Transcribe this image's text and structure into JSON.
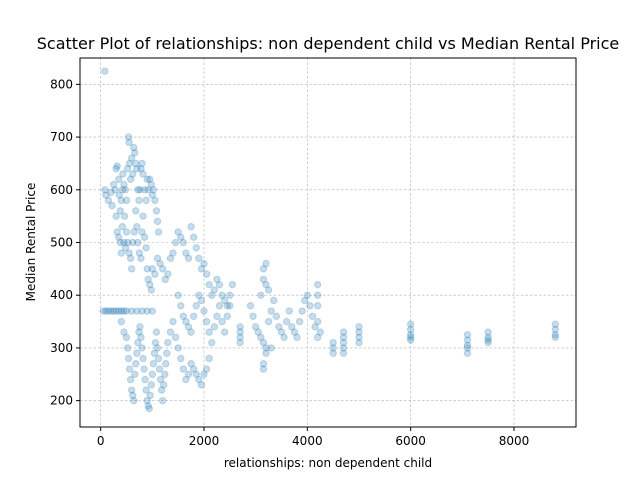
{
  "chart_data": {
    "type": "scatter",
    "title": "Scatter Plot of relationships: non dependent child vs Median Rental Price",
    "xlabel": "relationships: non dependent child",
    "ylabel": "Median Rental Price",
    "xlim": [
      -400,
      9200
    ],
    "ylim": [
      150,
      850
    ],
    "xticks": [
      0,
      2000,
      4000,
      6000,
      8000
    ],
    "yticks": [
      200,
      300,
      400,
      500,
      600,
      700,
      800
    ],
    "grid": true,
    "marker_color": "#1f77b4",
    "marker_alpha": 0.25,
    "points": [
      [
        80,
        825
      ],
      [
        80,
        600
      ],
      [
        100,
        590
      ],
      [
        150,
        580
      ],
      [
        200,
        595
      ],
      [
        220,
        570
      ],
      [
        250,
        610
      ],
      [
        280,
        600
      ],
      [
        300,
        640
      ],
      [
        320,
        645
      ],
      [
        350,
        620
      ],
      [
        360,
        590
      ],
      [
        380,
        560
      ],
      [
        400,
        580
      ],
      [
        420,
        600
      ],
      [
        430,
        630
      ],
      [
        450,
        610
      ],
      [
        460,
        550
      ],
      [
        480,
        600
      ],
      [
        500,
        580
      ],
      [
        520,
        640
      ],
      [
        540,
        700
      ],
      [
        550,
        690
      ],
      [
        560,
        650
      ],
      [
        580,
        620
      ],
      [
        600,
        660
      ],
      [
        620,
        630
      ],
      [
        640,
        680
      ],
      [
        660,
        670
      ],
      [
        680,
        650
      ],
      [
        700,
        640
      ],
      [
        720,
        600
      ],
      [
        740,
        580
      ],
      [
        760,
        600
      ],
      [
        780,
        640
      ],
      [
        800,
        650
      ],
      [
        820,
        630
      ],
      [
        850,
        600
      ],
      [
        880,
        580
      ],
      [
        900,
        620
      ],
      [
        920,
        600
      ],
      [
        950,
        620
      ],
      [
        980,
        610
      ],
      [
        1000,
        590
      ],
      [
        1020,
        600
      ],
      [
        1050,
        580
      ],
      [
        1080,
        560
      ],
      [
        1100,
        540
      ],
      [
        1120,
        520
      ],
      [
        300,
        550
      ],
      [
        320,
        520
      ],
      [
        350,
        510
      ],
      [
        380,
        500
      ],
      [
        400,
        480
      ],
      [
        420,
        530
      ],
      [
        450,
        500
      ],
      [
        480,
        490
      ],
      [
        500,
        520
      ],
      [
        520,
        500
      ],
      [
        550,
        480
      ],
      [
        580,
        470
      ],
      [
        600,
        450
      ],
      [
        620,
        500
      ],
      [
        650,
        520
      ],
      [
        680,
        560
      ],
      [
        700,
        530
      ],
      [
        720,
        500
      ],
      [
        750,
        480
      ],
      [
        780,
        470
      ],
      [
        800,
        520
      ],
      [
        820,
        550
      ],
      [
        850,
        510
      ],
      [
        880,
        490
      ],
      [
        900,
        450
      ],
      [
        920,
        430
      ],
      [
        950,
        420
      ],
      [
        980,
        410
      ],
      [
        1000,
        450
      ],
      [
        1050,
        440
      ],
      [
        1100,
        470
      ],
      [
        1150,
        460
      ],
      [
        1200,
        450
      ],
      [
        1250,
        430
      ],
      [
        1300,
        440
      ],
      [
        1350,
        470
      ],
      [
        1400,
        480
      ],
      [
        1450,
        500
      ],
      [
        1500,
        520
      ],
      [
        1550,
        510
      ],
      [
        1600,
        500
      ],
      [
        1650,
        480
      ],
      [
        1700,
        470
      ],
      [
        1750,
        530
      ],
      [
        1800,
        510
      ],
      [
        1850,
        490
      ],
      [
        1900,
        470
      ],
      [
        1950,
        450
      ],
      [
        2000,
        460
      ],
      [
        2050,
        440
      ],
      [
        2100,
        420
      ],
      [
        2150,
        400
      ],
      [
        2200,
        410
      ],
      [
        2250,
        430
      ],
      [
        2300,
        420
      ],
      [
        2350,
        400
      ],
      [
        2400,
        390
      ],
      [
        2450,
        380
      ],
      [
        2500,
        400
      ],
      [
        2550,
        420
      ],
      [
        50,
        370
      ],
      [
        100,
        370
      ],
      [
        150,
        370
      ],
      [
        200,
        370
      ],
      [
        250,
        370
      ],
      [
        300,
        370
      ],
      [
        350,
        370
      ],
      [
        400,
        370
      ],
      [
        450,
        370
      ],
      [
        500,
        370
      ],
      [
        600,
        370
      ],
      [
        700,
        370
      ],
      [
        800,
        370
      ],
      [
        900,
        370
      ],
      [
        1000,
        370
      ],
      [
        400,
        350
      ],
      [
        450,
        330
      ],
      [
        500,
        320
      ],
      [
        520,
        300
      ],
      [
        540,
        280
      ],
      [
        560,
        260
      ],
      [
        580,
        240
      ],
      [
        600,
        220
      ],
      [
        620,
        210
      ],
      [
        640,
        200
      ],
      [
        660,
        250
      ],
      [
        680,
        270
      ],
      [
        700,
        290
      ],
      [
        720,
        310
      ],
      [
        740,
        330
      ],
      [
        760,
        340
      ],
      [
        780,
        320
      ],
      [
        800,
        300
      ],
      [
        820,
        280
      ],
      [
        840,
        260
      ],
      [
        860,
        240
      ],
      [
        880,
        220
      ],
      [
        900,
        200
      ],
      [
        920,
        190
      ],
      [
        940,
        185
      ],
      [
        960,
        210
      ],
      [
        980,
        230
      ],
      [
        1000,
        250
      ],
      [
        1020,
        270
      ],
      [
        1040,
        290
      ],
      [
        1060,
        310
      ],
      [
        1080,
        330
      ],
      [
        1100,
        300
      ],
      [
        1120,
        280
      ],
      [
        1140,
        260
      ],
      [
        1160,
        240
      ],
      [
        1180,
        220
      ],
      [
        1200,
        200
      ],
      [
        1220,
        230
      ],
      [
        1240,
        250
      ],
      [
        1260,
        270
      ],
      [
        1280,
        290
      ],
      [
        1300,
        310
      ],
      [
        1350,
        330
      ],
      [
        1400,
        350
      ],
      [
        1450,
        320
      ],
      [
        1500,
        300
      ],
      [
        1550,
        280
      ],
      [
        1600,
        260
      ],
      [
        1650,
        240
      ],
      [
        1700,
        250
      ],
      [
        1750,
        270
      ],
      [
        1800,
        260
      ],
      [
        1850,
        250
      ],
      [
        1900,
        240
      ],
      [
        1950,
        230
      ],
      [
        2000,
        250
      ],
      [
        2050,
        260
      ],
      [
        2100,
        280
      ],
      [
        1500,
        400
      ],
      [
        1550,
        380
      ],
      [
        1600,
        360
      ],
      [
        1650,
        350
      ],
      [
        1700,
        340
      ],
      [
        1750,
        330
      ],
      [
        1800,
        360
      ],
      [
        1850,
        380
      ],
      [
        1900,
        400
      ],
      [
        1950,
        390
      ],
      [
        2000,
        370
      ],
      [
        2050,
        350
      ],
      [
        2100,
        330
      ],
      [
        2150,
        310
      ],
      [
        2200,
        340
      ],
      [
        2250,
        360
      ],
      [
        2300,
        380
      ],
      [
        2350,
        350
      ],
      [
        2400,
        330
      ],
      [
        2450,
        360
      ],
      [
        2500,
        380
      ],
      [
        2700,
        340
      ],
      [
        2700,
        330
      ],
      [
        2700,
        320
      ],
      [
        2700,
        310
      ],
      [
        2900,
        380
      ],
      [
        2950,
        360
      ],
      [
        3000,
        340
      ],
      [
        3050,
        330
      ],
      [
        3100,
        320
      ],
      [
        3150,
        310
      ],
      [
        3200,
        300
      ],
      [
        3250,
        350
      ],
      [
        3300,
        370
      ],
      [
        3350,
        390
      ],
      [
        3400,
        360
      ],
      [
        3450,
        340
      ],
      [
        3500,
        330
      ],
      [
        3550,
        320
      ],
      [
        3600,
        350
      ],
      [
        3650,
        370
      ],
      [
        3700,
        340
      ],
      [
        3750,
        330
      ],
      [
        3800,
        320
      ],
      [
        3850,
        350
      ],
      [
        3900,
        370
      ],
      [
        3950,
        390
      ],
      [
        4000,
        400
      ],
      [
        4050,
        380
      ],
      [
        4100,
        360
      ],
      [
        4150,
        340
      ],
      [
        4200,
        320
      ],
      [
        3150,
        450
      ],
      [
        3200,
        460
      ],
      [
        3150,
        430
      ],
      [
        3200,
        420
      ],
      [
        3100,
        400
      ],
      [
        3250,
        410
      ],
      [
        3150,
        270
      ],
      [
        3150,
        260
      ],
      [
        3200,
        290
      ],
      [
        3300,
        300
      ],
      [
        4200,
        420
      ],
      [
        4200,
        400
      ],
      [
        4200,
        380
      ],
      [
        4200,
        350
      ],
      [
        4250,
        330
      ],
      [
        4500,
        310
      ],
      [
        4500,
        300
      ],
      [
        4500,
        290
      ],
      [
        4700,
        330
      ],
      [
        4700,
        320
      ],
      [
        4700,
        310
      ],
      [
        4700,
        300
      ],
      [
        4700,
        290
      ],
      [
        5000,
        340
      ],
      [
        5000,
        330
      ],
      [
        5000,
        320
      ],
      [
        5000,
        310
      ],
      [
        6000,
        345
      ],
      [
        6000,
        335
      ],
      [
        6000,
        325
      ],
      [
        6000,
        320
      ],
      [
        6000,
        315
      ],
      [
        7100,
        325
      ],
      [
        7100,
        315
      ],
      [
        7100,
        305
      ],
      [
        7100,
        300
      ],
      [
        7100,
        290
      ],
      [
        7500,
        330
      ],
      [
        7500,
        320
      ],
      [
        7500,
        315
      ],
      [
        7500,
        310
      ],
      [
        8800,
        345
      ],
      [
        8800,
        335
      ],
      [
        8800,
        325
      ],
      [
        8800,
        320
      ]
    ]
  }
}
